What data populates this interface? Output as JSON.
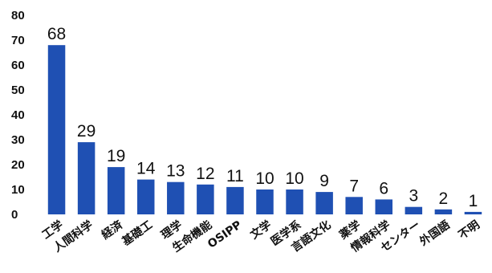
{
  "chart_data": {
    "type": "bar",
    "categories": [
      "工学",
      "人間科学",
      "経済",
      "基礎工",
      "理学",
      "生命機能",
      "OSIPP",
      "文学",
      "医学系",
      "言語文化",
      "薬学",
      "情報科学",
      "センター",
      "外国語",
      "不明"
    ],
    "values": [
      68,
      29,
      19,
      14,
      13,
      12,
      11,
      10,
      10,
      9,
      7,
      6,
      3,
      2,
      1
    ],
    "ylim": [
      0,
      80
    ],
    "yticks": [
      0,
      10,
      20,
      30,
      40,
      50,
      60,
      70,
      80
    ],
    "title": "",
    "xlabel": "",
    "ylabel": "",
    "grid": false,
    "bar_color": "#1f50b3"
  }
}
